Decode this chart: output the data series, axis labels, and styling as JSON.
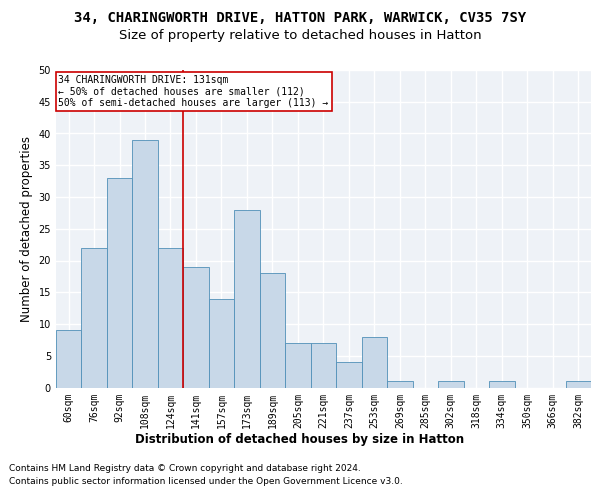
{
  "title_line1": "34, CHARINGWORTH DRIVE, HATTON PARK, WARWICK, CV35 7SY",
  "title_line2": "Size of property relative to detached houses in Hatton",
  "xlabel": "Distribution of detached houses by size in Hatton",
  "ylabel": "Number of detached properties",
  "categories": [
    "60sqm",
    "76sqm",
    "92sqm",
    "108sqm",
    "124sqm",
    "141sqm",
    "157sqm",
    "173sqm",
    "189sqm",
    "205sqm",
    "221sqm",
    "237sqm",
    "253sqm",
    "269sqm",
    "285sqm",
    "302sqm",
    "318sqm",
    "334sqm",
    "350sqm",
    "366sqm",
    "382sqm"
  ],
  "values": [
    9,
    22,
    33,
    39,
    22,
    19,
    14,
    28,
    18,
    7,
    7,
    4,
    8,
    1,
    0,
    1,
    0,
    1,
    0,
    0,
    1
  ],
  "bar_color": "#c8d8e8",
  "bar_edge_color": "#5090b8",
  "background_color": "#eef2f7",
  "grid_color": "#ffffff",
  "annotation_box_text": "34 CHARINGWORTH DRIVE: 131sqm\n← 50% of detached houses are smaller (112)\n50% of semi-detached houses are larger (113) →",
  "annotation_box_color": "#ffffff",
  "annotation_box_edge_color": "#cc0000",
  "vline_color": "#cc0000",
  "footer_line1": "Contains HM Land Registry data © Crown copyright and database right 2024.",
  "footer_line2": "Contains public sector information licensed under the Open Government Licence v3.0.",
  "ylim": [
    0,
    50
  ],
  "yticks": [
    0,
    5,
    10,
    15,
    20,
    25,
    30,
    35,
    40,
    45,
    50
  ],
  "title_fontsize": 10,
  "subtitle_fontsize": 9.5,
  "axis_label_fontsize": 8.5,
  "tick_fontsize": 7,
  "footer_fontsize": 6.5,
  "vline_x_index": 4.5
}
